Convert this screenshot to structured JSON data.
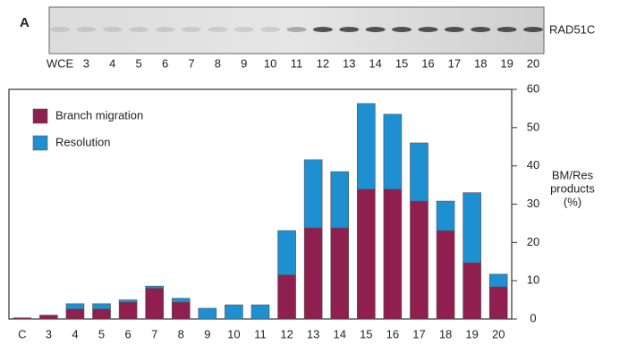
{
  "panel_label": "A",
  "blot": {
    "label": "RAD51C",
    "lanes": [
      "WCE",
      "3",
      "4",
      "5",
      "6",
      "7",
      "8",
      "9",
      "10",
      "11",
      "12",
      "13",
      "14",
      "15",
      "16",
      "17",
      "18",
      "19",
      "20"
    ]
  },
  "chart_data": {
    "type": "stacked_bar",
    "categories": [
      "C",
      "3",
      "4",
      "5",
      "6",
      "7",
      "8",
      "9",
      "10",
      "11",
      "12",
      "13",
      "14",
      "15",
      "16",
      "17",
      "18",
      "19",
      "20"
    ],
    "series": [
      {
        "name": "Branch migration",
        "color": "#8e1f4e",
        "values": [
          0.3,
          1,
          2.6,
          2.6,
          4.4,
          8,
          4.4,
          0,
          0,
          0,
          11.5,
          23.8,
          23.8,
          33.9,
          33.9,
          30.8,
          23.1,
          14.7,
          8.4
        ]
      },
      {
        "name": "Resolution",
        "color": "#1e8fd0",
        "values": [
          0,
          0,
          1.4,
          1.4,
          0.6,
          0.6,
          1,
          2.8,
          3.7,
          3.7,
          11.6,
          17.8,
          14.7,
          22.4,
          19.6,
          15.2,
          7.7,
          18.3,
          3.3
        ]
      }
    ],
    "y_label": [
      "BM/Res",
      "products",
      "(%)"
    ],
    "ylim": [
      0,
      60
    ],
    "yticks": [
      0,
      10,
      20,
      30,
      40,
      50,
      60
    ],
    "legend": "top-left"
  }
}
